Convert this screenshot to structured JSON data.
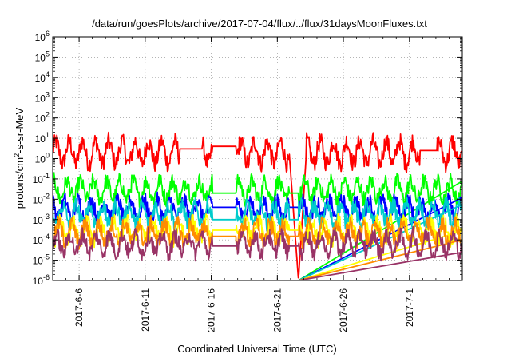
{
  "chart_data": {
    "type": "line",
    "title": "/data/run/goesPlots/archive/2017-07-04/flux/../flux/31daysMoonFluxes.txt",
    "xlabel": "Coordinated Universal Time (UTC)",
    "ylabel_main": "protons/cm",
    "ylabel_sup": "2",
    "ylabel_rest": "-s-sr-MeV",
    "yscale": "log",
    "grid": true,
    "x_range_days": [
      0,
      31
    ],
    "x_ticks": [
      {
        "label": "2017-6-6",
        "day": 2.0
      },
      {
        "label": "2017-6-11",
        "day": 7.0
      },
      {
        "label": "2017-6-16",
        "day": 12.0
      },
      {
        "label": "2017-6-21",
        "day": 17.0
      },
      {
        "label": "2017-6-26",
        "day": 22.0
      },
      {
        "label": "2017-7-1",
        "day": 27.0
      }
    ],
    "y_ticks": [
      {
        "base": "10",
        "exp": "-6",
        "value": 1e-06
      },
      {
        "base": "10",
        "exp": "-5",
        "value": 1e-05
      },
      {
        "base": "10",
        "exp": "-4",
        "value": 0.0001
      },
      {
        "base": "10",
        "exp": "-3",
        "value": 0.001
      },
      {
        "base": "10",
        "exp": "-2",
        "value": 0.01
      },
      {
        "base": "10",
        "exp": "-1",
        "value": 0.1
      },
      {
        "base": "10",
        "exp": "0",
        "value": 1
      },
      {
        "base": "10",
        "exp": "1",
        "value": 10
      },
      {
        "base": "10",
        "exp": "2",
        "value": 100
      },
      {
        "base": "10",
        "exp": "3",
        "value": 1000
      },
      {
        "base": "10",
        "exp": "4",
        "value": 10000
      },
      {
        "base": "10",
        "exp": "5",
        "value": 100000
      },
      {
        "base": "10",
        "exp": "6",
        "value": 1000000
      }
    ],
    "ylim": [
      1e-06,
      1000000.0
    ],
    "series": [
      {
        "color": "#ff0000",
        "base_log": 0.3,
        "gaps": [
          {
            "from": 9.6,
            "to": 11.3,
            "value": 3.0
          },
          {
            "from": 12.1,
            "to": 13.9,
            "value": 4.0
          },
          {
            "from": 27.8,
            "to": 29.1,
            "value": 2.5
          }
        ],
        "dip": {
          "start": 17.9,
          "mid": 18.6,
          "end": 19.2,
          "value": 1e-06
        }
      },
      {
        "color": "#00ff00",
        "base_log": -1.55,
        "gaps": [
          {
            "from": 12.1,
            "to": 13.9,
            "value": 0.02
          },
          {
            "from": 17.9,
            "to": 18.6,
            "value": 0.02
          }
        ]
      },
      {
        "color": "#0000ff",
        "base_log": -2.5,
        "gaps": [
          {
            "from": 12.1,
            "to": 13.9,
            "value": 0.004
          },
          {
            "from": 17.9,
            "to": 18.6,
            "value": 0.004
          }
        ]
      },
      {
        "color": "#00cccc",
        "base_log": -2.75,
        "gaps": [
          {
            "from": 12.1,
            "to": 13.9,
            "value": 0.001
          },
          {
            "from": 17.9,
            "to": 18.6,
            "value": 0.001
          }
        ]
      },
      {
        "color": "#ffff00",
        "base_log": -3.55,
        "gaps": [
          {
            "from": 12.1,
            "to": 13.9,
            "value": 0.0003
          },
          {
            "from": 17.9,
            "to": 18.6,
            "value": 0.0003
          }
        ]
      },
      {
        "color": "#ff8c00",
        "base_log": -3.65,
        "gaps": [
          {
            "from": 12.1,
            "to": 13.9,
            "value": 0.00015
          },
          {
            "from": 17.9,
            "to": 18.6,
            "value": 0.00015
          }
        ]
      },
      {
        "color": "#993366",
        "base_log": -4.2,
        "gaps": [
          {
            "from": 12.1,
            "to": 13.9,
            "value": 5e-05
          },
          {
            "from": 17.9,
            "to": 18.6,
            "value": 5e-05
          }
        ]
      }
    ]
  }
}
